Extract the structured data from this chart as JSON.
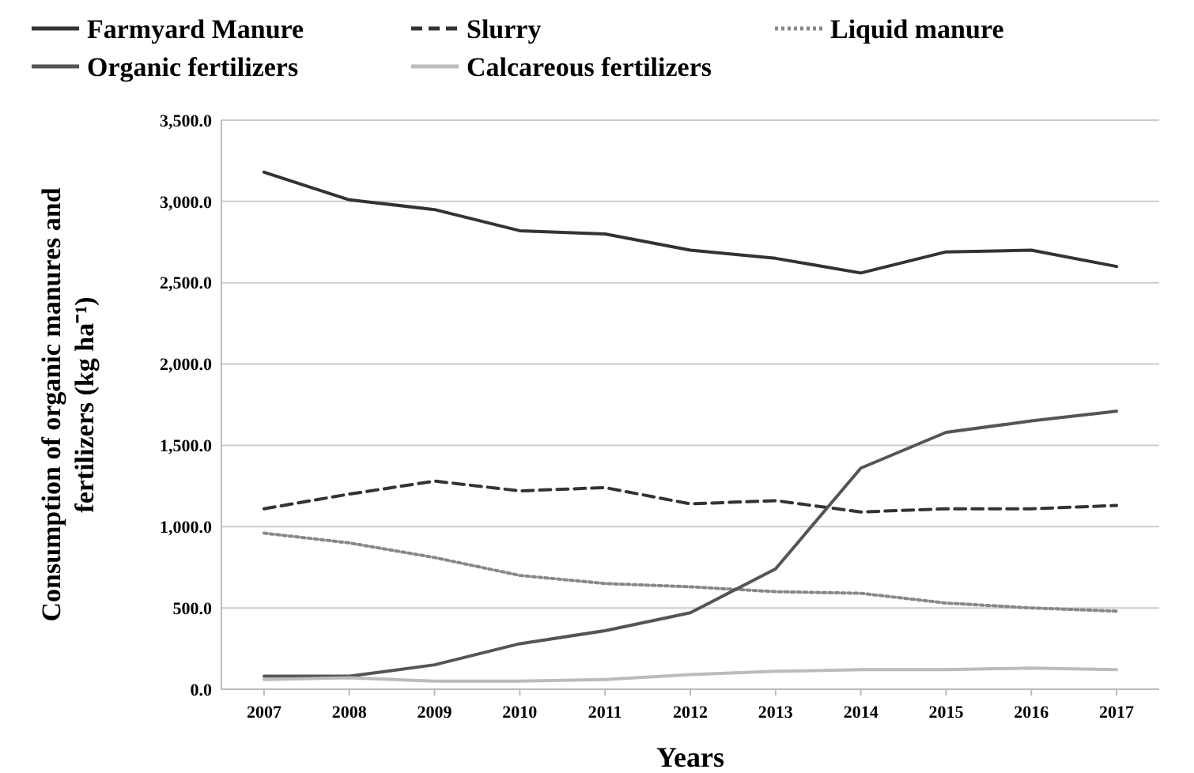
{
  "chart_data": {
    "type": "line",
    "xlabel": "Years",
    "ylabel": "Consumption of organic manures and fertilizers (kg ha⁻¹)",
    "categories": [
      "2007",
      "2008",
      "2009",
      "2010",
      "2011",
      "2012",
      "2013",
      "2014",
      "2015",
      "2016",
      "2017"
    ],
    "ylim": [
      0,
      3500
    ],
    "yticks": [
      {
        "value": 0,
        "label": "0.0"
      },
      {
        "value": 500,
        "label": "500.0"
      },
      {
        "value": 1000,
        "label": "1,000.0"
      },
      {
        "value": 1500,
        "label": "1,500.0"
      },
      {
        "value": 2000,
        "label": "2,000.0"
      },
      {
        "value": 2500,
        "label": "2,500.0"
      },
      {
        "value": 3000,
        "label": "3,000.0"
      },
      {
        "value": 3500,
        "label": "3,500.0"
      }
    ],
    "grid": "y",
    "legend": "top",
    "marker": "none",
    "series": [
      {
        "name": "Farmyard Manure",
        "color": "#333333",
        "line_style": "solid",
        "values": [
          3180,
          3010,
          2950,
          2820,
          2800,
          2700,
          2650,
          2560,
          2690,
          2700,
          2600
        ]
      },
      {
        "name": "Slurry",
        "color": "#333333",
        "line_style": "dashed",
        "values": [
          1110,
          1200,
          1280,
          1220,
          1240,
          1140,
          1160,
          1090,
          1110,
          1110,
          1130
        ]
      },
      {
        "name": "Liquid manure",
        "color": "#888888",
        "line_style": "dotted",
        "values": [
          960,
          900,
          810,
          700,
          650,
          630,
          600,
          590,
          530,
          500,
          480
        ]
      },
      {
        "name": "Organic fertilizers",
        "color": "#555555",
        "line_style": "solid",
        "values": [
          80,
          80,
          150,
          280,
          360,
          470,
          740,
          1360,
          1580,
          1650,
          1710
        ]
      },
      {
        "name": "Calcareous fertilizers",
        "color": "#bbbbbb",
        "line_style": "solid",
        "values": [
          60,
          70,
          50,
          50,
          60,
          90,
          110,
          120,
          120,
          130,
          120
        ]
      }
    ]
  }
}
